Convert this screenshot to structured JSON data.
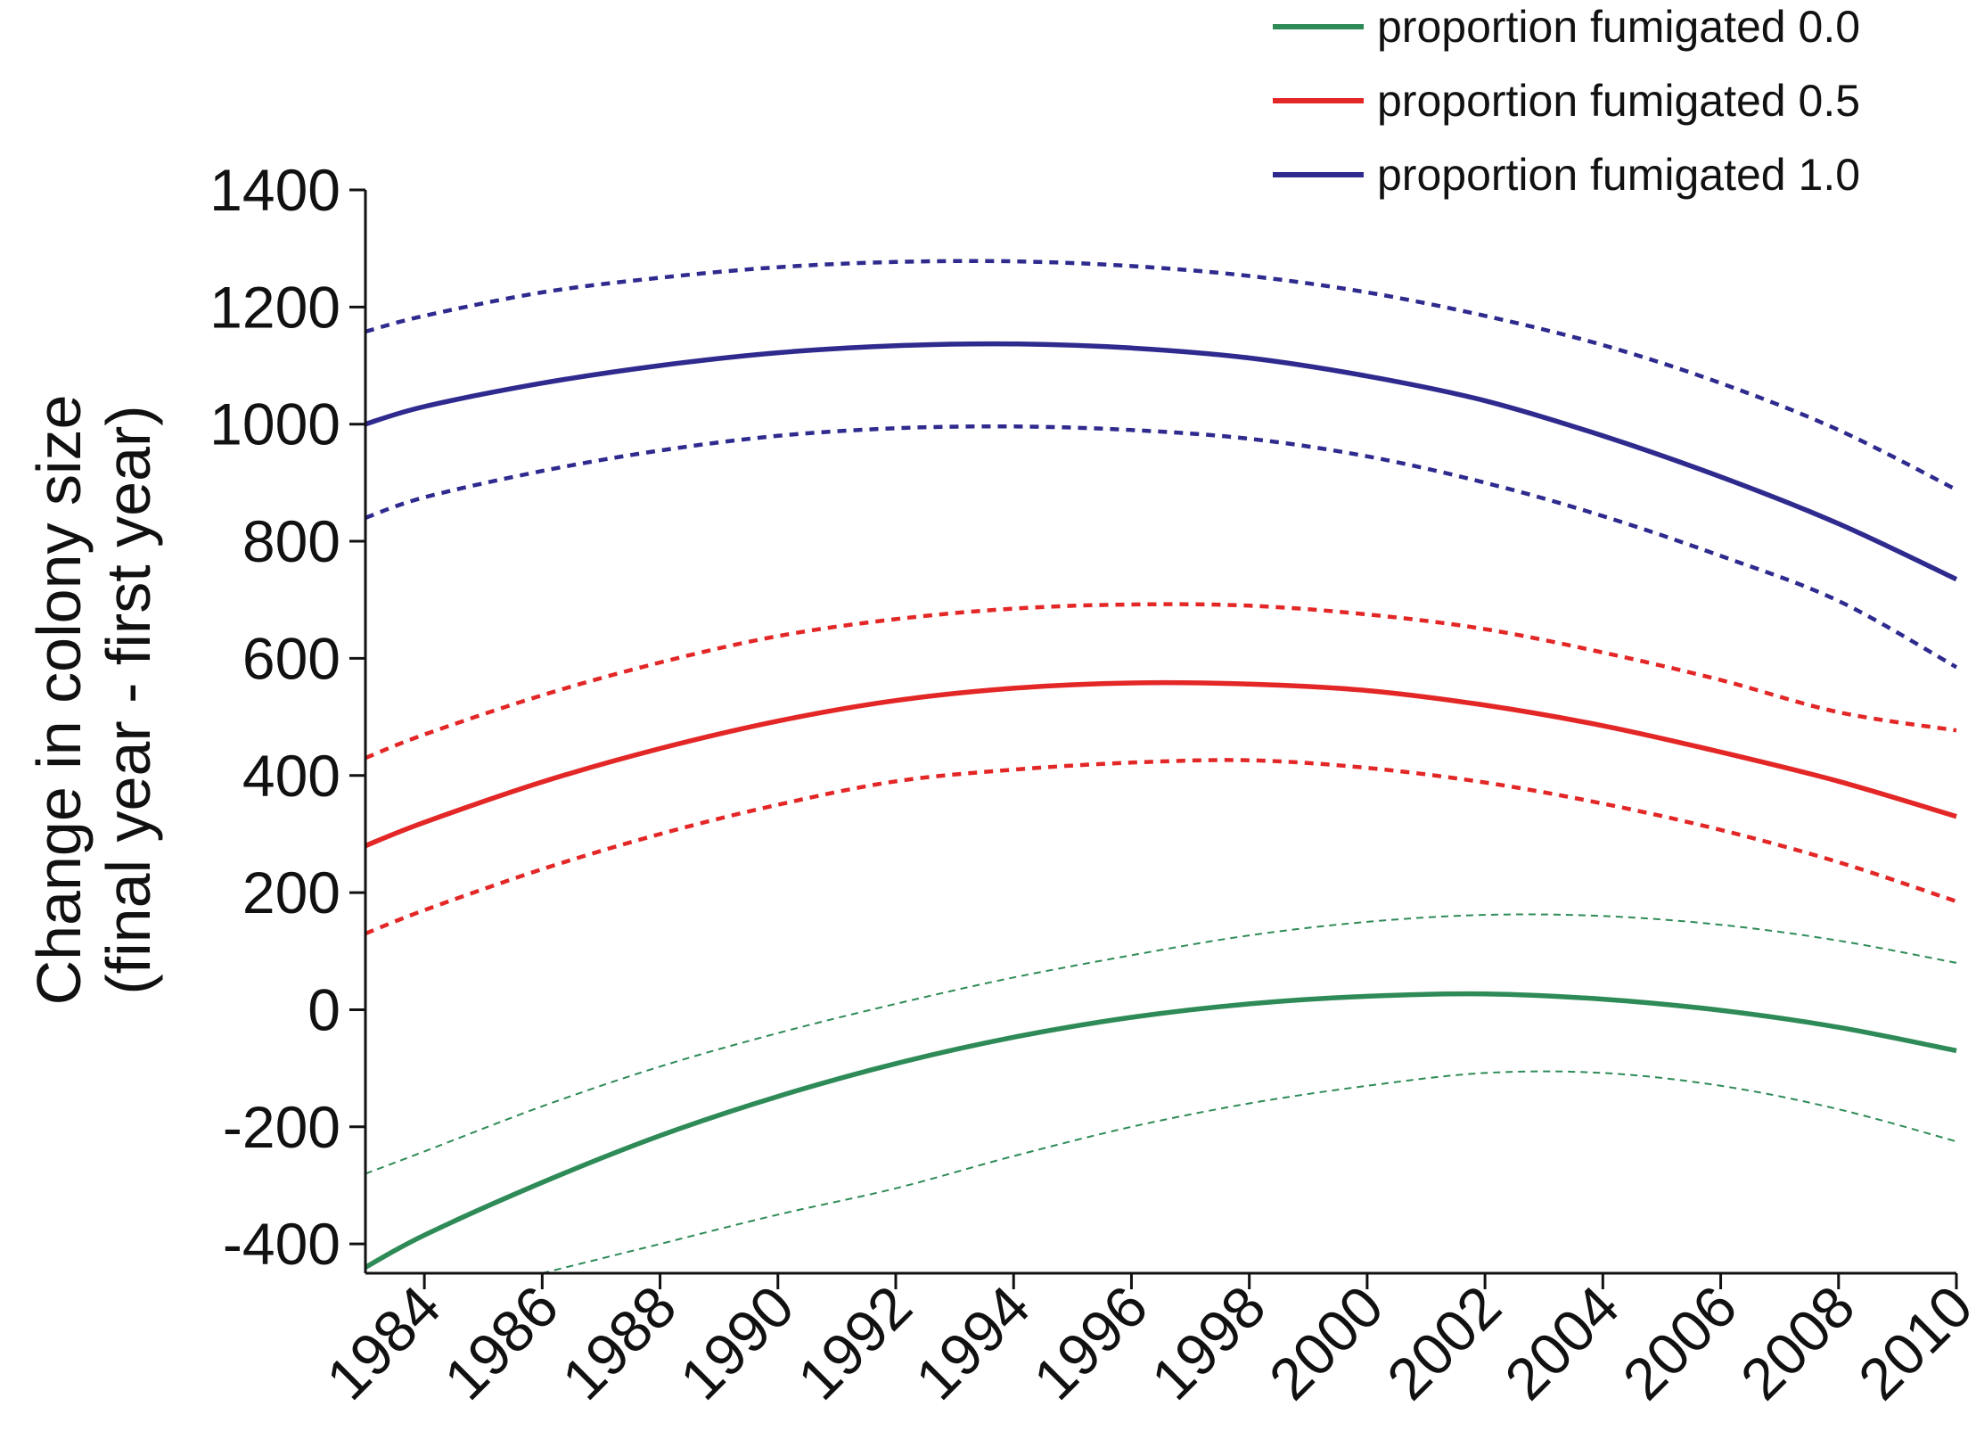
{
  "chart_data": {
    "type": "line",
    "title": "",
    "xlabel": "",
    "ylabel_lines": [
      "Change in colony size",
      "(final year - first year)"
    ],
    "xlim": [
      1983,
      2010
    ],
    "ylim": [
      -450,
      1400
    ],
    "x_ticks": [
      1984,
      1986,
      1988,
      1990,
      1992,
      1994,
      1996,
      1998,
      2000,
      2002,
      2004,
      2006,
      2008,
      2010
    ],
    "x_tick_labels": [
      "1984",
      "1986",
      "1988",
      "1990",
      "1992",
      "1994",
      "1996",
      "1998",
      "2000",
      "2002",
      "2004",
      "2006",
      "2008",
      "2010"
    ],
    "y_ticks": [
      -400,
      -200,
      0,
      200,
      400,
      600,
      800,
      1000,
      1200,
      1400
    ],
    "y_tick_labels": [
      "-400",
      "-200",
      "0",
      "200",
      "400",
      "600",
      "800",
      "1000",
      "1200",
      "1400"
    ],
    "legend_position": "top-right",
    "x": [
      1983,
      1984,
      1986,
      1988,
      1990,
      1992,
      1994,
      1996,
      1998,
      2000,
      2002,
      2004,
      2006,
      2008,
      2010
    ],
    "series": [
      {
        "name": "proportion fumigated 0.0",
        "color": "#2e8b57",
        "fit": [
          -440,
          -385,
          -295,
          -215,
          -148,
          -92,
          -47,
          -13,
          10,
          23,
          27,
          18,
          -1,
          -30,
          -70
        ],
        "ci_upper": [
          -280,
          -242,
          -165,
          -97,
          -40,
          10,
          55,
          93,
          127,
          150,
          162,
          160,
          145,
          118,
          80
        ],
        "ci_lower": [
          null,
          null,
          -450,
          -400,
          -350,
          -305,
          -250,
          -200,
          -160,
          -130,
          -108,
          -108,
          -130,
          -170,
          -225
        ]
      },
      {
        "name": "proportion fumigated 0.5",
        "color": "#e32626",
        "fit": [
          280,
          320,
          389,
          446,
          493,
          528,
          549,
          558,
          556,
          545,
          520,
          485,
          440,
          390,
          330
        ],
        "ci_upper": [
          430,
          470,
          537,
          593,
          638,
          667,
          685,
          692,
          690,
          675,
          650,
          610,
          563,
          508,
          477
        ],
        "ci_lower": [
          130,
          170,
          240,
          300,
          350,
          390,
          410,
          422,
          426,
          413,
          388,
          352,
          307,
          252,
          185
        ]
      },
      {
        "name": "proportion fumigated 1.0",
        "color": "#2e2a8e",
        "fit": [
          1000,
          1030,
          1070,
          1100,
          1122,
          1134,
          1137,
          1130,
          1113,
          1082,
          1040,
          980,
          910,
          830,
          735
        ],
        "ci_upper": [
          1158,
          1185,
          1225,
          1250,
          1268,
          1277,
          1278,
          1270,
          1253,
          1225,
          1185,
          1135,
          1070,
          990,
          888
        ],
        "ci_lower": [
          840,
          875,
          920,
          955,
          980,
          993,
          996,
          990,
          975,
          945,
          900,
          843,
          775,
          698,
          585
        ]
      }
    ]
  }
}
